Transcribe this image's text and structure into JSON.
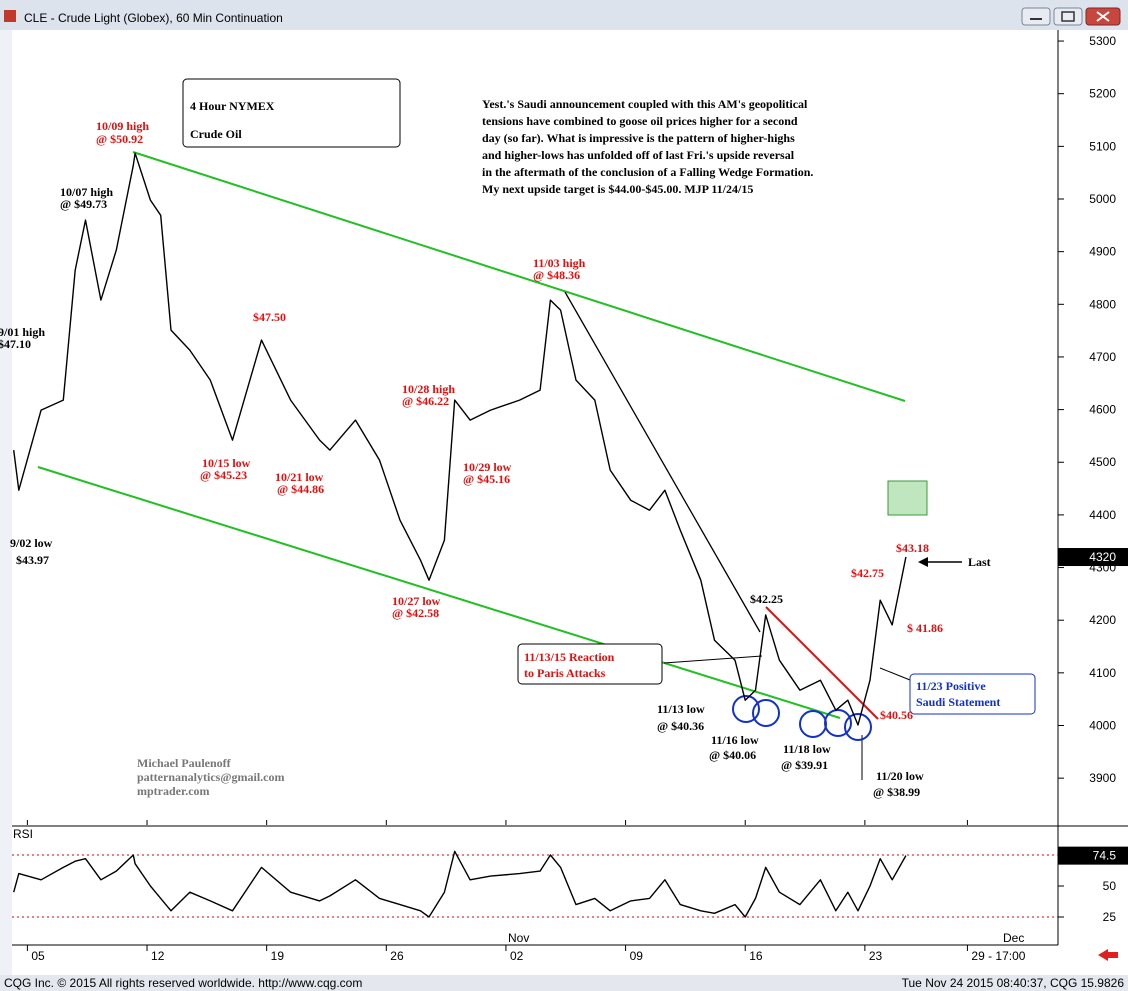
{
  "window_title": "CLE - Crude Light (Globex), 60 Min Continuation",
  "footer_left": "CQG Inc. © 2015 All rights reserved worldwide. http://www.cqg.com",
  "footer_right": "Tue Nov 24 2015 08:40:37, CQG 15.9826",
  "chart_data": [
    {
      "type": "line",
      "x": [
        4.2,
        4.5,
        5.8,
        7.1,
        7.8,
        8.4,
        9.3,
        10.2,
        11.2,
        11.3,
        12.2,
        12.8,
        13.4,
        14.5,
        15.7,
        17.0,
        18.7,
        20.4,
        22.1,
        22.7,
        24.2,
        25.6,
        26.8,
        28.0,
        28.5,
        29.4,
        30.0,
        30.9,
        32.1,
        33.8,
        35.0,
        35.6,
        36.2,
        37.1,
        38.2,
        39.1,
        40.3,
        41.4,
        42.3,
        43.2,
        44.4,
        45.2,
        46.4,
        47.0,
        47.6,
        48.2,
        49.0,
        50.2,
        51.4,
        52.3,
        53.0,
        53.6,
        54.3,
        54.9,
        55.6,
        56.4
      ],
      "values": [
        4523,
        4447,
        4599,
        4618,
        4865,
        4960,
        4808,
        4903,
        5064,
        5087,
        4998,
        4969,
        4751,
        4713,
        4656,
        4542,
        4732,
        4618,
        4542,
        4523,
        4580,
        4504,
        4390,
        4314,
        4276,
        4352,
        4618,
        4580,
        4599,
        4618,
        4637,
        4808,
        4789,
        4656,
        4618,
        4485,
        4428,
        4409,
        4447,
        4371,
        4276,
        4162,
        4124,
        4048,
        4067,
        4210,
        4124,
        4067,
        4086,
        4029,
        4048,
        4001,
        4086,
        4238,
        4191,
        4320
      ],
      "color": "#000000",
      "xlim": [
        4.1,
        65.3
      ],
      "ylim": [
        3811,
        5321
      ],
      "yticks": [
        3900,
        4000,
        4100,
        4200,
        4300,
        4400,
        4500,
        4600,
        4700,
        4800,
        4900,
        5000,
        5100,
        5200,
        5300
      ],
      "xticks": [
        {
          "value": 5,
          "label": "05"
        },
        12,
        19,
        26,
        {
          "value": 33,
          "label": "02"
        },
        {
          "value": 40,
          "label": "09"
        },
        {
          "value": 47,
          "label": "16"
        },
        {
          "value": 54,
          "label": "23"
        },
        {
          "value": 60,
          "label": "29 - 17:00"
        }
      ],
      "month_labels": [
        "Nov",
        "Dec"
      ],
      "annotations": [
        "4 Hour NYMEX",
        "Crude Oil",
        "Yest.'s Saudi announcement coupled with this AM's geopolitical",
        "tensions have combined to goose oil prices higher for a second",
        "day (so far). What is impressive is the pattern of higher-highs",
        "and higher-lows has unfolded off of last Fri.'s upside reversal",
        "in the aftermath of the conclusion of a Falling Wedge Formation.",
        "My next upside target is $44.00-$45.00. MJP 11/24/15",
        "10/09 high",
        "@ $50.92",
        "10/07 high",
        "@ $49.73",
        "9/01 high",
        "$47.10",
        "$47.50",
        "10/15 low",
        "@ $45.23",
        "10/21 low",
        "@ $44.86",
        "10/28 high",
        "@ $46.22",
        "10/29 low",
        "@ $45.16",
        "11/03 high",
        "@ $48.36",
        "10/27 low",
        "@ $42.58",
        "9/02 low",
        "$43.97",
        "$42.25",
        "$42.75",
        "$43.18",
        "Last",
        "$ 41.86",
        "$40.56",
        "11/13/15 Reaction",
        "to Paris Attacks",
        "11/23 Positive",
        "Saudi Statement",
        "11/13 low",
        "@ $40.36",
        "11/16 low",
        "@ $40.06",
        "11/18 low",
        "@ $39.91",
        "11/20 low",
        "@ $38.99",
        "Michael Paulenoff",
        "patternanalytics@gmail.com",
        "mptrader.com"
      ]
    },
    {
      "type": "line",
      "title": "RSI",
      "x": [
        4.2,
        4.5,
        5.8,
        7.1,
        7.8,
        8.4,
        9.3,
        10.2,
        11.2,
        11.3,
        12.2,
        12.8,
        13.4,
        14.5,
        15.7,
        17.0,
        18.7,
        20.4,
        22.1,
        22.7,
        24.2,
        25.6,
        26.8,
        28.0,
        28.5,
        29.4,
        30.0,
        30.9,
        32.1,
        33.8,
        35.0,
        35.6,
        36.2,
        37.1,
        38.2,
        39.1,
        40.3,
        41.4,
        42.3,
        43.2,
        44.4,
        45.2,
        46.4,
        47.0,
        47.6,
        48.2,
        49.0,
        50.2,
        51.4,
        52.3,
        53.0,
        53.6,
        54.3,
        54.9,
        55.6,
        56.4
      ],
      "values": [
        45,
        60,
        55,
        65,
        70,
        72,
        55,
        62,
        75,
        68,
        50,
        40,
        30,
        45,
        38,
        30,
        65,
        45,
        38,
        42,
        55,
        40,
        35,
        30,
        25,
        45,
        78,
        55,
        58,
        60,
        62,
        75,
        65,
        35,
        40,
        30,
        38,
        40,
        55,
        35,
        30,
        28,
        35,
        25,
        40,
        65,
        45,
        35,
        55,
        30,
        45,
        30,
        50,
        72,
        55,
        74.5
      ],
      "color": "#000000",
      "xlim": [
        4.1,
        65.3
      ],
      "ylim": [
        2.4,
        96.8
      ],
      "yticks": [
        25,
        50
      ],
      "levels": [
        25,
        75
      ],
      "level_color": "#e00000"
    }
  ]
}
